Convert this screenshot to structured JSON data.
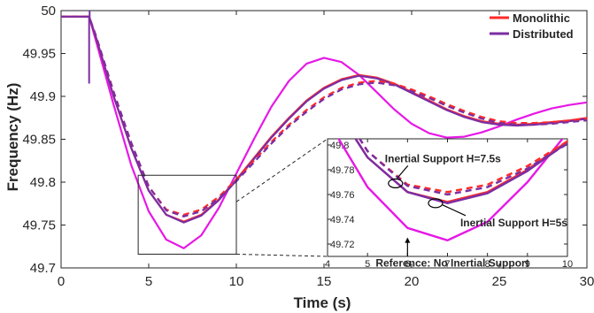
{
  "chart_data": {
    "type": "line",
    "title": "",
    "xlabel": "Time (s)",
    "ylabel": "Frequency (Hz)",
    "xlim": [
      0,
      30
    ],
    "ylim": [
      49.7,
      50
    ],
    "xticks": [
      "0",
      "5",
      "10",
      "15",
      "20",
      "25",
      "30"
    ],
    "yticks": [
      "49.7",
      "49.75",
      "49.8",
      "49.85",
      "49.9",
      "49.95",
      "50"
    ],
    "grid": false,
    "legend": {
      "position": "top-right",
      "entries": [
        {
          "name": "Monolithic",
          "color": "#ff2a2a"
        },
        {
          "name": "Distributed",
          "color": "#7b2ea3"
        }
      ]
    },
    "series": [
      {
        "name": "Reference: No Inertial Support",
        "color": "#e619e6",
        "style": "solid",
        "x": [
          0,
          1.6,
          2,
          3,
          4,
          5,
          6,
          7,
          8,
          9,
          10,
          11,
          12,
          13,
          14,
          15,
          16,
          17,
          18,
          19,
          20,
          21,
          22,
          23,
          24,
          25,
          26,
          27,
          28,
          29,
          30
        ],
        "y": [
          49.993,
          49.993,
          49.964,
          49.89,
          49.82,
          49.766,
          49.733,
          49.723,
          49.738,
          49.77,
          49.81,
          49.85,
          49.888,
          49.918,
          49.938,
          49.945,
          49.94,
          49.925,
          49.905,
          49.885,
          49.868,
          49.857,
          49.852,
          49.853,
          49.858,
          49.865,
          49.873,
          49.88,
          49.886,
          49.89,
          49.893
        ]
      },
      {
        "name": "Inertial Support H=5s (Monolithic)",
        "color": "#ff2a2a",
        "style": "solid",
        "x": [
          0,
          1.6,
          2,
          3,
          4,
          5,
          6,
          7,
          8,
          9,
          10,
          11,
          12,
          13,
          14,
          15,
          16,
          17,
          18,
          19,
          20,
          21,
          22,
          23,
          24,
          25,
          26,
          27,
          28,
          29,
          30
        ],
        "y": [
          49.993,
          49.993,
          49.968,
          49.9,
          49.84,
          49.79,
          49.762,
          49.754,
          49.762,
          49.78,
          49.803,
          49.828,
          49.853,
          49.875,
          49.895,
          49.91,
          49.92,
          49.925,
          49.922,
          49.915,
          49.905,
          49.895,
          49.885,
          49.877,
          49.871,
          49.868,
          49.867,
          49.868,
          49.87,
          49.872,
          49.875
        ]
      },
      {
        "name": "Inertial Support H=5s (Distributed)",
        "color": "#7b2ea3",
        "style": "solid",
        "x": [
          0,
          1.6,
          2,
          3,
          4,
          5,
          6,
          7,
          8,
          9,
          10,
          11,
          12,
          13,
          14,
          15,
          16,
          17,
          18,
          19,
          20,
          21,
          22,
          23,
          24,
          25,
          26,
          27,
          28,
          29,
          30
        ],
        "y": [
          49.993,
          49.993,
          49.968,
          49.9,
          49.84,
          49.79,
          49.762,
          49.753,
          49.761,
          49.779,
          49.802,
          49.827,
          49.852,
          49.874,
          49.894,
          49.909,
          49.919,
          49.924,
          49.921,
          49.914,
          49.904,
          49.894,
          49.884,
          49.876,
          49.87,
          49.867,
          49.866,
          49.867,
          49.869,
          49.871,
          49.874
        ]
      },
      {
        "name": "Inertial Support H=7.5s (Monolithic)",
        "color": "#ff2a2a",
        "style": "dashed",
        "x": [
          0,
          1.6,
          2,
          3,
          4,
          5,
          6,
          7,
          8,
          9,
          10,
          11,
          12,
          13,
          14,
          15,
          16,
          17,
          18,
          19,
          20,
          21,
          22,
          23,
          24,
          25,
          26,
          27,
          28,
          29,
          30
        ],
        "y": [
          49.993,
          49.993,
          49.97,
          49.905,
          49.846,
          49.795,
          49.768,
          49.762,
          49.768,
          49.783,
          49.803,
          49.825,
          49.847,
          49.867,
          49.884,
          49.899,
          49.91,
          49.916,
          49.918,
          49.915,
          49.908,
          49.9,
          49.891,
          49.883,
          49.876,
          49.871,
          49.869,
          49.869,
          49.87,
          49.872,
          49.874
        ]
      },
      {
        "name": "Inertial Support H=7.5s (Distributed)",
        "color": "#7b2ea3",
        "style": "dashed",
        "x": [
          0,
          1.6,
          2,
          3,
          4,
          5,
          6,
          7,
          8,
          9,
          10,
          11,
          12,
          13,
          14,
          15,
          16,
          17,
          18,
          19,
          20,
          21,
          22,
          23,
          24,
          25,
          26,
          27,
          28,
          29,
          30
        ],
        "y": [
          49.993,
          49.993,
          49.97,
          49.905,
          49.846,
          49.795,
          49.767,
          49.76,
          49.766,
          49.781,
          49.801,
          49.823,
          49.845,
          49.865,
          49.882,
          49.897,
          49.908,
          49.914,
          49.916,
          49.913,
          49.906,
          49.898,
          49.889,
          49.881,
          49.874,
          49.869,
          49.867,
          49.867,
          49.868,
          49.87,
          49.872
        ]
      }
    ],
    "inset": {
      "xlim": [
        4,
        10
      ],
      "ylim": [
        49.71,
        49.805
      ],
      "xticks": [
        "4",
        "5",
        "6",
        "7",
        "8",
        "9",
        "10"
      ],
      "yticks": [
        "49.72",
        "49.74",
        "49.76",
        "49.78",
        "49.8"
      ],
      "zoom_box": {
        "x": [
          4.4,
          10
        ],
        "y": [
          49.716,
          49.808
        ]
      },
      "annotations": [
        {
          "text": "Inertial Support H=7.5s",
          "target": [
            5.7,
            49.769
          ]
        },
        {
          "text": "Inertial Support H=5s",
          "target": [
            6.7,
            49.753
          ]
        },
        {
          "text": "Reference: No Inertial Support",
          "target": [
            6.0,
            49.726
          ]
        }
      ]
    }
  }
}
